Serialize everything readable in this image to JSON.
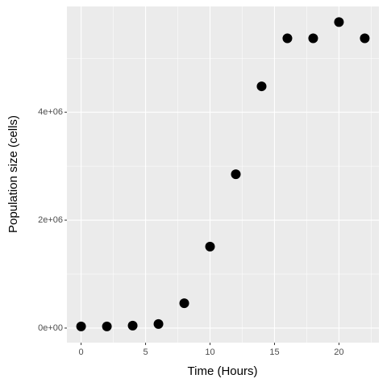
{
  "chart_data": {
    "type": "scatter",
    "x_label": "Time (Hours)",
    "y_label": "Population size (cells)",
    "x": [
      0,
      2,
      4,
      6,
      8,
      10,
      12,
      14,
      16,
      18,
      20,
      22
    ],
    "values": [
      30000,
      30000,
      45000,
      75000,
      460000,
      1510000,
      2850000,
      4480000,
      5370000,
      5370000,
      5670000,
      5370000
    ],
    "color": "#000000",
    "xlim": [
      -1.1,
      23.1
    ],
    "xticks": [
      0,
      5,
      10,
      15,
      20
    ],
    "ylim": [
      -270000,
      5960000
    ],
    "yticks": [
      {
        "value": 0,
        "label": "0e+00"
      },
      {
        "value": 2000000,
        "label": "2e+06"
      },
      {
        "value": 4000000,
        "label": "4e+06"
      }
    ],
    "x_minor_grid": [
      2.5,
      7.5,
      12.5,
      17.5,
      22.5
    ],
    "y_minor_grid": [
      1000000,
      3000000,
      5000000
    ],
    "grid": true
  }
}
